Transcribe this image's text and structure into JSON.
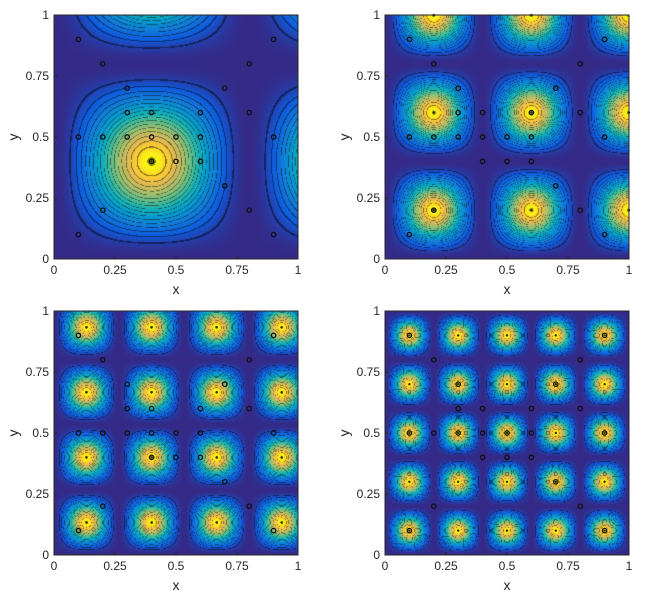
{
  "chart_data": [
    {
      "type": "heatmap",
      "title": "",
      "xlabel": "x",
      "ylabel": "y",
      "xlim": [
        0,
        1
      ],
      "ylim": [
        0,
        1
      ],
      "xticks": [
        "0",
        "0.25",
        "0.5",
        "0.75",
        "1"
      ],
      "yticks": [
        "0",
        "0.25",
        "0.5",
        "0.75",
        "1"
      ],
      "colormap": "parula",
      "field": {
        "function": "product_of_periodic_bumps",
        "period": 0.8,
        "peak_offset": 0.4
      },
      "peaks": [
        [
          0.4,
          0.4
        ]
      ],
      "points": [
        [
          0.1,
          0.9
        ],
        [
          0.2,
          0.8
        ],
        [
          0.9,
          0.9
        ],
        [
          0.8,
          0.8
        ],
        [
          0.3,
          0.7
        ],
        [
          0.7,
          0.7
        ],
        [
          0.1,
          0.5
        ],
        [
          0.2,
          0.5
        ],
        [
          0.3,
          0.6
        ],
        [
          0.3,
          0.5
        ],
        [
          0.4,
          0.6
        ],
        [
          0.4,
          0.5
        ],
        [
          0.5,
          0.5
        ],
        [
          0.5,
          0.4
        ],
        [
          0.6,
          0.6
        ],
        [
          0.6,
          0.5
        ],
        [
          0.6,
          0.4
        ],
        [
          0.4,
          0.4
        ],
        [
          0.7,
          0.3
        ],
        [
          0.8,
          0.6
        ],
        [
          0.9,
          0.5
        ],
        [
          0.1,
          0.1
        ],
        [
          0.2,
          0.2
        ],
        [
          0.8,
          0.2
        ],
        [
          0.9,
          0.1
        ]
      ]
    },
    {
      "type": "heatmap",
      "title": "",
      "xlabel": "x",
      "ylabel": "y",
      "xlim": [
        0,
        1
      ],
      "ylim": [
        0,
        1
      ],
      "xticks": [
        "0",
        "0.25",
        "0.5",
        "0.75",
        "1"
      ],
      "yticks": [
        "0",
        "0.25",
        "0.5",
        "0.75",
        "1"
      ],
      "colormap": "parula",
      "field": {
        "function": "product_of_periodic_bumps",
        "period": 0.4,
        "peak_offset": 0.2
      },
      "peaks": [
        [
          0.2,
          0.2
        ],
        [
          0.6,
          0.2
        ],
        [
          0.2,
          0.6
        ],
        [
          0.6,
          0.6
        ],
        [
          1.0,
          0.2
        ],
        [
          1.0,
          0.6
        ],
        [
          0.2,
          1.0
        ],
        [
          0.6,
          1.0
        ]
      ],
      "points": [
        [
          0.1,
          0.9
        ],
        [
          0.2,
          0.8
        ],
        [
          0.9,
          0.9
        ],
        [
          0.8,
          0.8
        ],
        [
          0.3,
          0.7
        ],
        [
          0.7,
          0.7
        ],
        [
          0.1,
          0.5
        ],
        [
          0.2,
          0.5
        ],
        [
          0.3,
          0.6
        ],
        [
          0.3,
          0.5
        ],
        [
          0.4,
          0.6
        ],
        [
          0.4,
          0.5
        ],
        [
          0.5,
          0.5
        ],
        [
          0.5,
          0.4
        ],
        [
          0.6,
          0.6
        ],
        [
          0.6,
          0.5
        ],
        [
          0.6,
          0.4
        ],
        [
          0.4,
          0.4
        ],
        [
          0.7,
          0.3
        ],
        [
          0.8,
          0.6
        ],
        [
          0.9,
          0.5
        ],
        [
          0.1,
          0.1
        ],
        [
          0.2,
          0.2
        ],
        [
          0.8,
          0.2
        ],
        [
          0.9,
          0.1
        ]
      ]
    },
    {
      "type": "heatmap",
      "title": "",
      "xlabel": "x",
      "ylabel": "y",
      "xlim": [
        0,
        1
      ],
      "ylim": [
        0,
        1
      ],
      "xticks": [
        "0",
        "0.25",
        "0.5",
        "0.75",
        "1"
      ],
      "yticks": [
        "0",
        "0.25",
        "0.5",
        "0.75",
        "1"
      ],
      "colormap": "parula",
      "field": {
        "function": "product_of_periodic_bumps",
        "period": 0.2667,
        "peak_offset": 0.1333
      },
      "peaks": [
        [
          0.133,
          0.133
        ],
        [
          0.4,
          0.133
        ],
        [
          0.667,
          0.133
        ],
        [
          0.933,
          0.133
        ],
        [
          0.133,
          0.4
        ],
        [
          0.4,
          0.4
        ],
        [
          0.667,
          0.4
        ],
        [
          0.933,
          0.4
        ],
        [
          0.133,
          0.667
        ],
        [
          0.4,
          0.667
        ],
        [
          0.667,
          0.667
        ],
        [
          0.933,
          0.667
        ],
        [
          0.133,
          0.933
        ],
        [
          0.4,
          0.933
        ],
        [
          0.667,
          0.933
        ],
        [
          0.933,
          0.933
        ]
      ],
      "points": [
        [
          0.1,
          0.9
        ],
        [
          0.2,
          0.8
        ],
        [
          0.9,
          0.9
        ],
        [
          0.8,
          0.8
        ],
        [
          0.3,
          0.7
        ],
        [
          0.7,
          0.7
        ],
        [
          0.1,
          0.5
        ],
        [
          0.2,
          0.5
        ],
        [
          0.3,
          0.6
        ],
        [
          0.3,
          0.5
        ],
        [
          0.4,
          0.6
        ],
        [
          0.4,
          0.5
        ],
        [
          0.5,
          0.5
        ],
        [
          0.5,
          0.4
        ],
        [
          0.6,
          0.6
        ],
        [
          0.6,
          0.5
        ],
        [
          0.6,
          0.4
        ],
        [
          0.4,
          0.4
        ],
        [
          0.7,
          0.3
        ],
        [
          0.8,
          0.6
        ],
        [
          0.9,
          0.5
        ],
        [
          0.1,
          0.1
        ],
        [
          0.2,
          0.2
        ],
        [
          0.8,
          0.2
        ],
        [
          0.9,
          0.1
        ]
      ]
    },
    {
      "type": "heatmap",
      "title": "",
      "xlabel": "x",
      "ylabel": "y",
      "xlim": [
        0,
        1
      ],
      "ylim": [
        0,
        1
      ],
      "xticks": [
        "0",
        "0.25",
        "0.5",
        "0.75",
        "1"
      ],
      "yticks": [
        "0",
        "0.25",
        "0.5",
        "0.75",
        "1"
      ],
      "colormap": "parula",
      "field": {
        "function": "product_of_periodic_bumps",
        "period": 0.2,
        "peak_offset": 0.1
      },
      "peaks": [
        [
          0.1,
          0.1
        ],
        [
          0.3,
          0.1
        ],
        [
          0.5,
          0.1
        ],
        [
          0.7,
          0.1
        ],
        [
          0.9,
          0.1
        ],
        [
          0.1,
          0.3
        ],
        [
          0.3,
          0.3
        ],
        [
          0.5,
          0.3
        ],
        [
          0.7,
          0.3
        ],
        [
          0.9,
          0.3
        ],
        [
          0.1,
          0.5
        ],
        [
          0.3,
          0.5
        ],
        [
          0.5,
          0.5
        ],
        [
          0.7,
          0.5
        ],
        [
          0.9,
          0.5
        ],
        [
          0.1,
          0.7
        ],
        [
          0.3,
          0.7
        ],
        [
          0.5,
          0.7
        ],
        [
          0.7,
          0.7
        ],
        [
          0.9,
          0.7
        ],
        [
          0.1,
          0.9
        ],
        [
          0.3,
          0.9
        ],
        [
          0.5,
          0.9
        ],
        [
          0.7,
          0.9
        ],
        [
          0.9,
          0.9
        ]
      ],
      "points": [
        [
          0.1,
          0.9
        ],
        [
          0.2,
          0.8
        ],
        [
          0.9,
          0.9
        ],
        [
          0.8,
          0.8
        ],
        [
          0.3,
          0.7
        ],
        [
          0.7,
          0.7
        ],
        [
          0.1,
          0.5
        ],
        [
          0.2,
          0.5
        ],
        [
          0.3,
          0.6
        ],
        [
          0.3,
          0.5
        ],
        [
          0.4,
          0.6
        ],
        [
          0.4,
          0.5
        ],
        [
          0.5,
          0.5
        ],
        [
          0.5,
          0.4
        ],
        [
          0.6,
          0.6
        ],
        [
          0.6,
          0.5
        ],
        [
          0.6,
          0.4
        ],
        [
          0.4,
          0.4
        ],
        [
          0.7,
          0.3
        ],
        [
          0.8,
          0.6
        ],
        [
          0.9,
          0.5
        ],
        [
          0.1,
          0.1
        ],
        [
          0.2,
          0.2
        ],
        [
          0.8,
          0.2
        ],
        [
          0.9,
          0.1
        ]
      ]
    }
  ]
}
